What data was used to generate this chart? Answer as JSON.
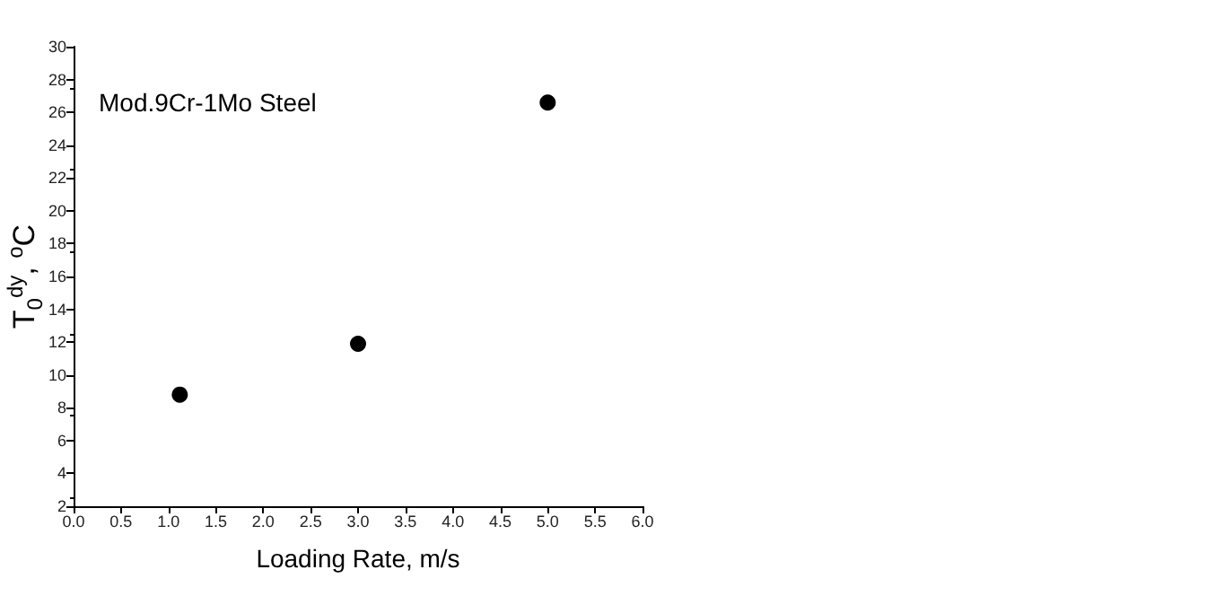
{
  "chart_data": {
    "type": "scatter",
    "xlabel": "Loading Rate, m/s",
    "ylabel": "T$_{0}$$^{dy}$, $^{o}$C",
    "annotations": [
      "Mod.9Cr-1Mo Steel"
    ],
    "x": [
      1.12,
      3.0,
      5.0
    ],
    "series": [
      {
        "color": "#000000",
        "values": [
          8.8,
          11.9,
          26.6
        ]
      }
    ],
    "xlim": [
      0,
      6
    ],
    "xticks": [
      {
        "value": 0,
        "label": "0.0"
      },
      0.5,
      {
        "value": 1,
        "label": "1.0"
      },
      1.5,
      {
        "value": 2,
        "label": "2.0"
      },
      2.5,
      {
        "value": 3,
        "label": "3.0"
      },
      3.5,
      {
        "value": 4,
        "label": "4.0"
      },
      4.5,
      {
        "value": 5,
        "label": "5.0"
      },
      5.5,
      {
        "value": 6,
        "label": "6.0"
      }
    ],
    "ylim": [
      2,
      30
    ],
    "yticks": [
      2,
      4,
      6,
      8,
      10,
      12,
      14,
      16,
      18,
      20,
      22,
      24,
      26,
      28,
      30
    ],
    "marker": "circle",
    "grid": false
  }
}
